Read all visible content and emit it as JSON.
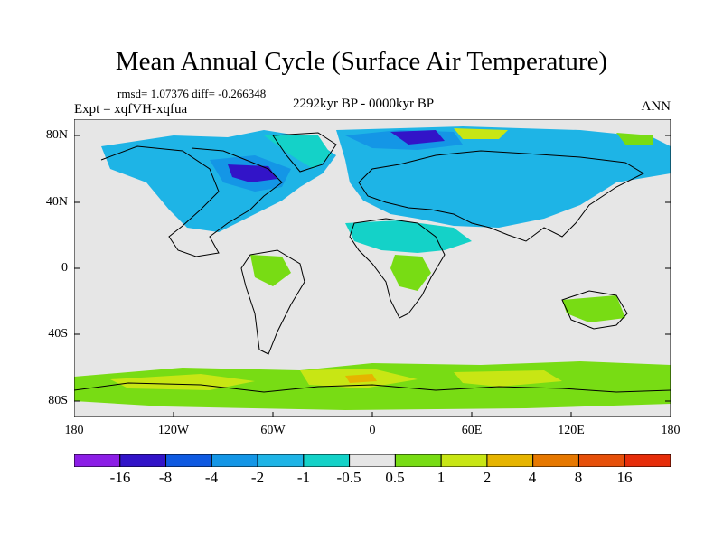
{
  "title": "Mean Annual Cycle (Surface Air Temperature)",
  "stats": "rmsd= 1.07376 diff= -0.266348",
  "experiment": "Expt = xqfVH-xqfua",
  "period": "2292kyr BP - 0000kyr BP",
  "season": "ANN",
  "map": {
    "lat_labels": [
      "80N",
      "40N",
      "0",
      "40S",
      "80S"
    ],
    "lon_labels": [
      "180",
      "120W",
      "60W",
      "0",
      "60E",
      "120E",
      "180"
    ]
  },
  "colorbar": {
    "labels": [
      "-16",
      "-8",
      "-4",
      "-2",
      "-1",
      "-0.5",
      "0.5",
      "1",
      "2",
      "4",
      "8",
      "16"
    ],
    "colors": [
      "#8c1ee6",
      "#3214c8",
      "#0f5ae1",
      "#1496e6",
      "#1eb4e6",
      "#14d2c8",
      "#e6e6e6",
      "#78dc14",
      "#c8e614",
      "#e6b400",
      "#e67800",
      "#e6500a",
      "#e62d0a"
    ]
  }
}
